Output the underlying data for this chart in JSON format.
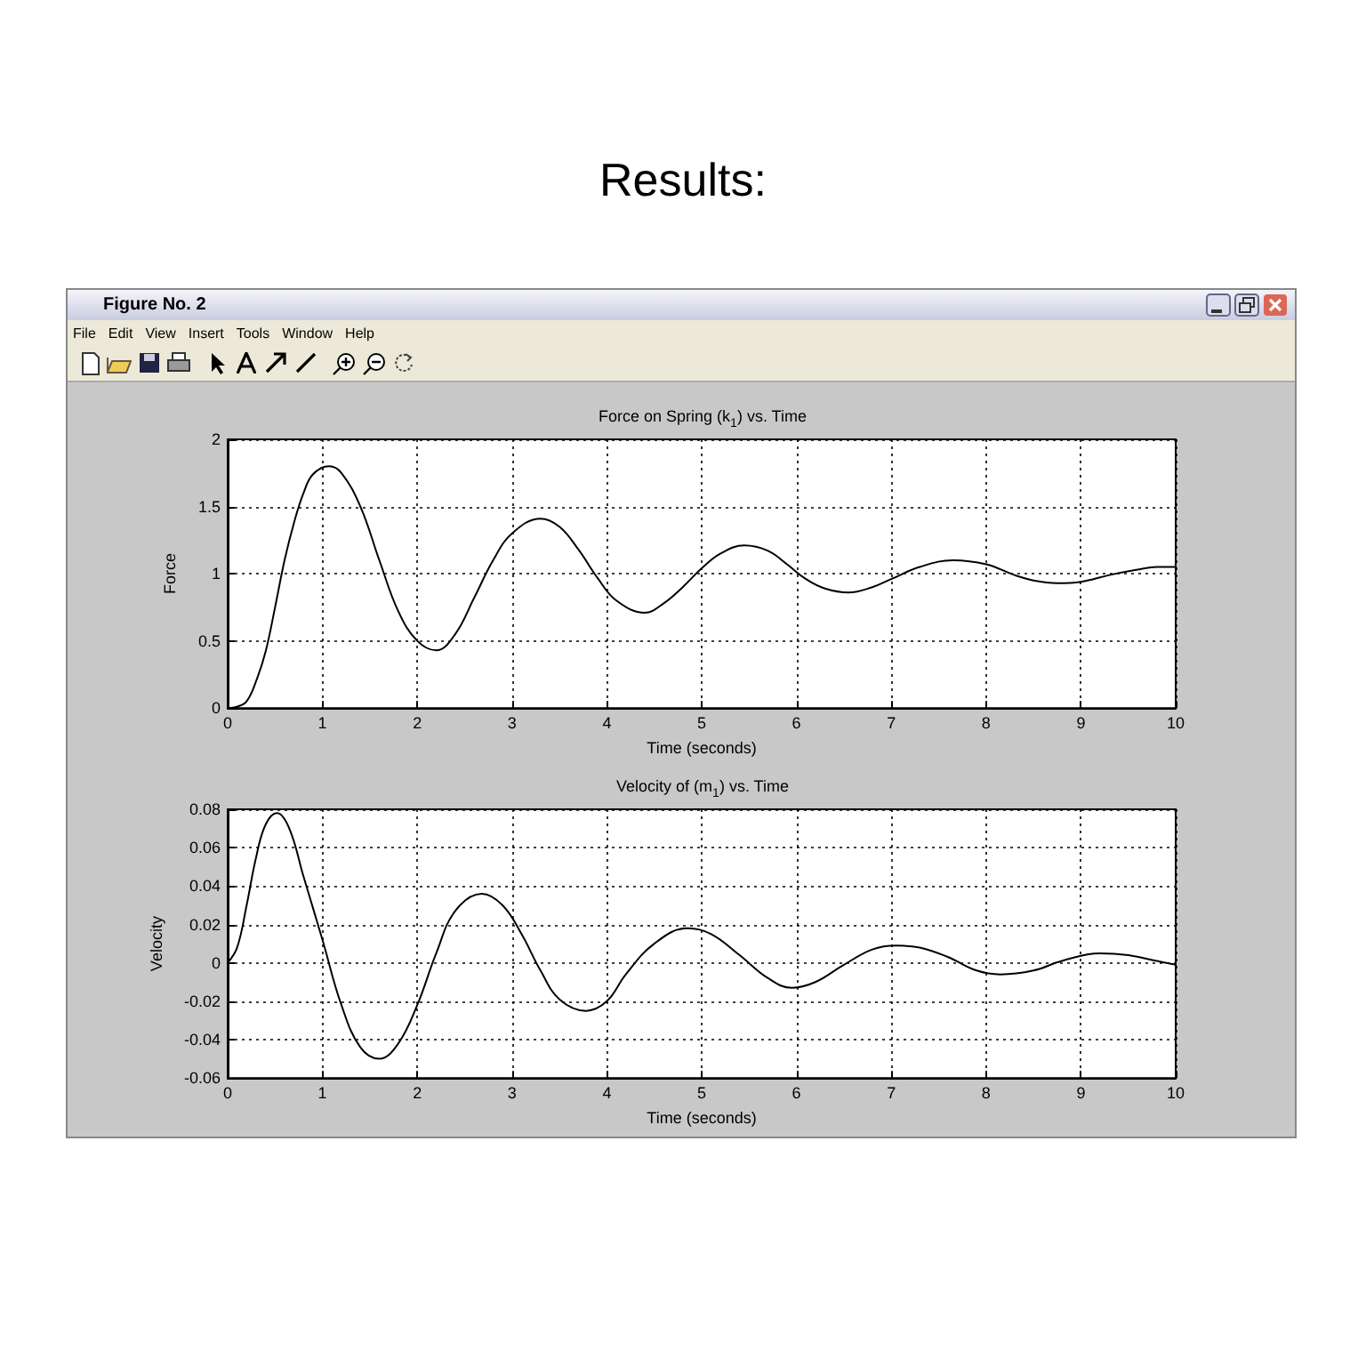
{
  "chart_data": [
    {
      "type": "line",
      "title": "Force on Spring (k$_{1}$) vs. Time",
      "xlabel": "Time (seconds)",
      "ylabel": "Force",
      "annotations": [
        "Results:",
        "Figure No. 2",
        "File",
        "Edit",
        "View",
        "Insert",
        "Tools",
        "Window",
        "Help"
      ],
      "x": [
        0,
        0.1,
        0.2,
        0.3,
        0.4,
        0.5,
        0.6,
        0.7,
        0.8,
        0.9,
        1.07,
        1.2,
        1.4,
        1.6,
        1.8,
        2.0,
        2.2,
        2.4,
        2.6,
        2.8,
        3.0,
        3.3,
        3.5,
        3.7,
        3.9,
        4.1,
        4.4,
        4.6,
        4.8,
        5.0,
        5.2,
        5.45,
        5.7,
        5.9,
        6.1,
        6.3,
        6.55,
        6.8,
        7.0,
        7.3,
        7.65,
        8.0,
        8.3,
        8.5,
        8.75,
        9.0,
        9.3,
        9.6,
        9.8,
        10
      ],
      "series": [
        {
          "color": "#000000",
          "values": [
            0,
            0.01,
            0.05,
            0.2,
            0.42,
            0.75,
            1.1,
            1.38,
            1.6,
            1.74,
            1.8,
            1.75,
            1.5,
            1.1,
            0.72,
            0.5,
            0.43,
            0.55,
            0.82,
            1.1,
            1.3,
            1.41,
            1.35,
            1.18,
            0.97,
            0.8,
            0.71,
            0.78,
            0.9,
            1.04,
            1.15,
            1.21,
            1.17,
            1.07,
            0.96,
            0.89,
            0.86,
            0.9,
            0.96,
            1.05,
            1.1,
            1.07,
            0.99,
            0.95,
            0.93,
            0.94,
            0.99,
            1.03,
            1.05,
            1.05
          ]
        }
      ],
      "xlim": [
        0,
        10
      ],
      "xticks": [
        0,
        1,
        2,
        3,
        4,
        5,
        6,
        7,
        8,
        9,
        10
      ],
      "ylim": [
        0,
        2
      ],
      "yticks": [
        0,
        0.5,
        1,
        1.5,
        2
      ],
      "grid": true
    },
    {
      "type": "line",
      "title": "Velocity of (m$_{1}$) vs. Time",
      "xlabel": "Time (seconds)",
      "ylabel": "Velocity",
      "x": [
        0,
        0.1,
        0.2,
        0.3,
        0.4,
        0.52,
        0.65,
        0.8,
        1.0,
        1.2,
        1.4,
        1.6,
        1.8,
        2.0,
        2.2,
        2.4,
        2.68,
        2.9,
        3.1,
        3.3,
        3.5,
        3.78,
        4.0,
        4.2,
        4.5,
        4.85,
        5.1,
        5.4,
        5.7,
        5.95,
        6.2,
        6.5,
        6.8,
        7.05,
        7.3,
        7.6,
        7.9,
        8.15,
        8.5,
        8.8,
        9.2,
        9.5,
        9.8,
        10
      ],
      "series": [
        {
          "color": "#000000",
          "values": [
            0,
            0.008,
            0.03,
            0.055,
            0.072,
            0.078,
            0.07,
            0.045,
            0.012,
            -0.022,
            -0.044,
            -0.05,
            -0.042,
            -0.022,
            0.005,
            0.027,
            0.036,
            0.03,
            0.015,
            -0.004,
            -0.019,
            -0.025,
            -0.02,
            -0.006,
            0.01,
            0.018,
            0.015,
            0.004,
            -0.008,
            -0.013,
            -0.01,
            -0.001,
            0.007,
            0.009,
            0.008,
            0.003,
            -0.004,
            -0.006,
            -0.004,
            0.001,
            0.005,
            0.004,
            0.001,
            -0.001
          ]
        }
      ],
      "xlim": [
        0,
        10
      ],
      "xticks": [
        0,
        1,
        2,
        3,
        4,
        5,
        6,
        7,
        8,
        9,
        10
      ],
      "ylim": [
        -0.06,
        0.08
      ],
      "yticks": [
        -0.06,
        -0.04,
        -0.02,
        0,
        0.02,
        0.04,
        0.06,
        0.08
      ],
      "grid": true
    }
  ]
}
